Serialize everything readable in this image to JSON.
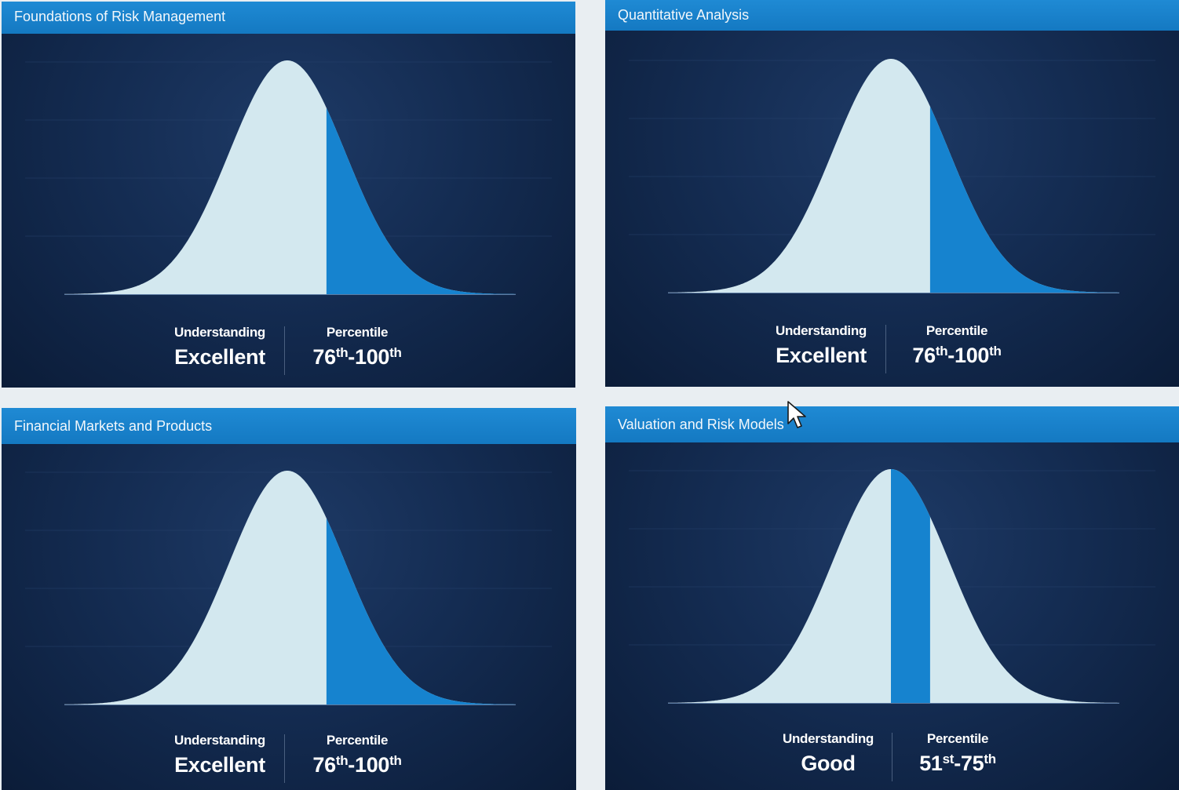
{
  "panels": [
    {
      "title": "Foundations of Risk Management",
      "understanding_label": "Understanding",
      "understanding_value": "Excellent",
      "percentile_label": "Percentile",
      "percentile_from": "76",
      "percentile_from_suffix": "th",
      "percentile_sep": "-",
      "percentile_to": "100",
      "percentile_to_suffix": "th",
      "highlight_percentile_range": [
        76,
        100
      ]
    },
    {
      "title": "Quantitative Analysis",
      "understanding_label": "Understanding",
      "understanding_value": "Excellent",
      "percentile_label": "Percentile",
      "percentile_from": "76",
      "percentile_from_suffix": "th",
      "percentile_sep": "-",
      "percentile_to": "100",
      "percentile_to_suffix": "th",
      "highlight_percentile_range": [
        76,
        100
      ]
    },
    {
      "title": "Financial Markets and Products",
      "understanding_label": "Understanding",
      "understanding_value": "Excellent",
      "percentile_label": "Percentile",
      "percentile_from": "76",
      "percentile_from_suffix": "th",
      "percentile_sep": "-",
      "percentile_to": "100",
      "percentile_to_suffix": "th",
      "highlight_percentile_range": [
        76,
        100
      ]
    },
    {
      "title": "Valuation and Risk Models",
      "understanding_label": "Understanding",
      "understanding_value": "Good",
      "percentile_label": "Percentile",
      "percentile_from": "51",
      "percentile_from_suffix": "st",
      "percentile_sep": "-",
      "percentile_to": "75",
      "percentile_to_suffix": "th",
      "highlight_percentile_range": [
        51,
        75
      ]
    }
  ],
  "colors": {
    "header": "#1a83cf",
    "panel_bg": "#102548",
    "curve_fill": "#d3e8ef",
    "highlight_fill": "#1683cf",
    "gridline": "#2a4570",
    "text": "#ffffff"
  },
  "icons": {
    "cursor": "mouse-pointer-icon"
  }
}
